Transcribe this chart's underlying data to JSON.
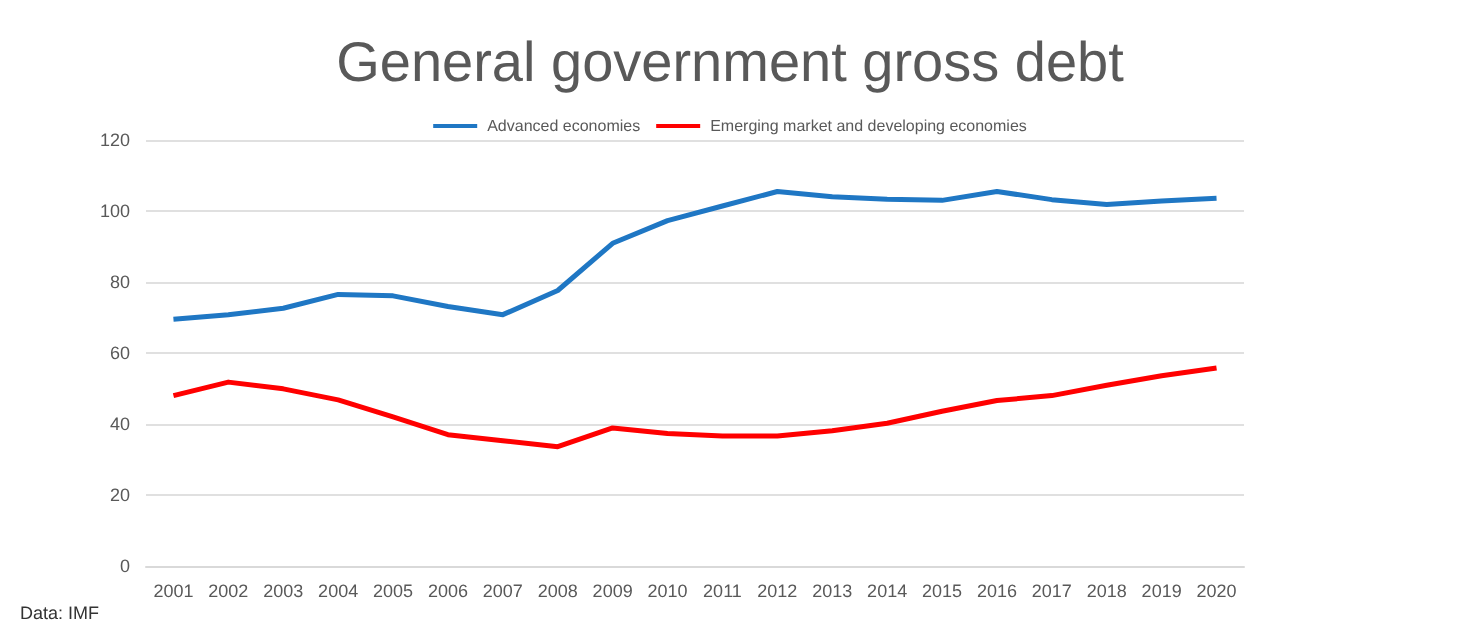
{
  "chart_data": {
    "type": "line",
    "title": "General government gross debt",
    "categories": [
      "2001",
      "2002",
      "2003",
      "2004",
      "2005",
      "2006",
      "2007",
      "2008",
      "2009",
      "2010",
      "2011",
      "2012",
      "2013",
      "2014",
      "2015",
      "2016",
      "2017",
      "2018",
      "2019",
      "2020"
    ],
    "series": [
      {
        "name": "Advanced economies",
        "color": "#1f77c4",
        "values": [
          69.5,
          70.8,
          72.6,
          76.5,
          76.1,
          73.1,
          70.8,
          77.6,
          90.9,
          97.3,
          101.4,
          105.5,
          104,
          103.3,
          103,
          105.5,
          103.2,
          101.8,
          102.8,
          103.6
        ]
      },
      {
        "name": "Emerging market and developing economies",
        "color": "#ff0000",
        "values": [
          48,
          51.8,
          49.9,
          46.8,
          42,
          37,
          35.3,
          33.6,
          38.9,
          37.3,
          36.6,
          36.6,
          38.1,
          40.2,
          43.6,
          46.6,
          48,
          50.9,
          53.6,
          55.8
        ]
      }
    ],
    "ylim": [
      0,
      120
    ],
    "yticks": [
      0,
      20,
      40,
      60,
      80,
      100,
      120
    ],
    "grid": "y",
    "legend": "top",
    "marker": "none",
    "line_style": "solid",
    "annotations": [
      "Data: IMF"
    ]
  }
}
